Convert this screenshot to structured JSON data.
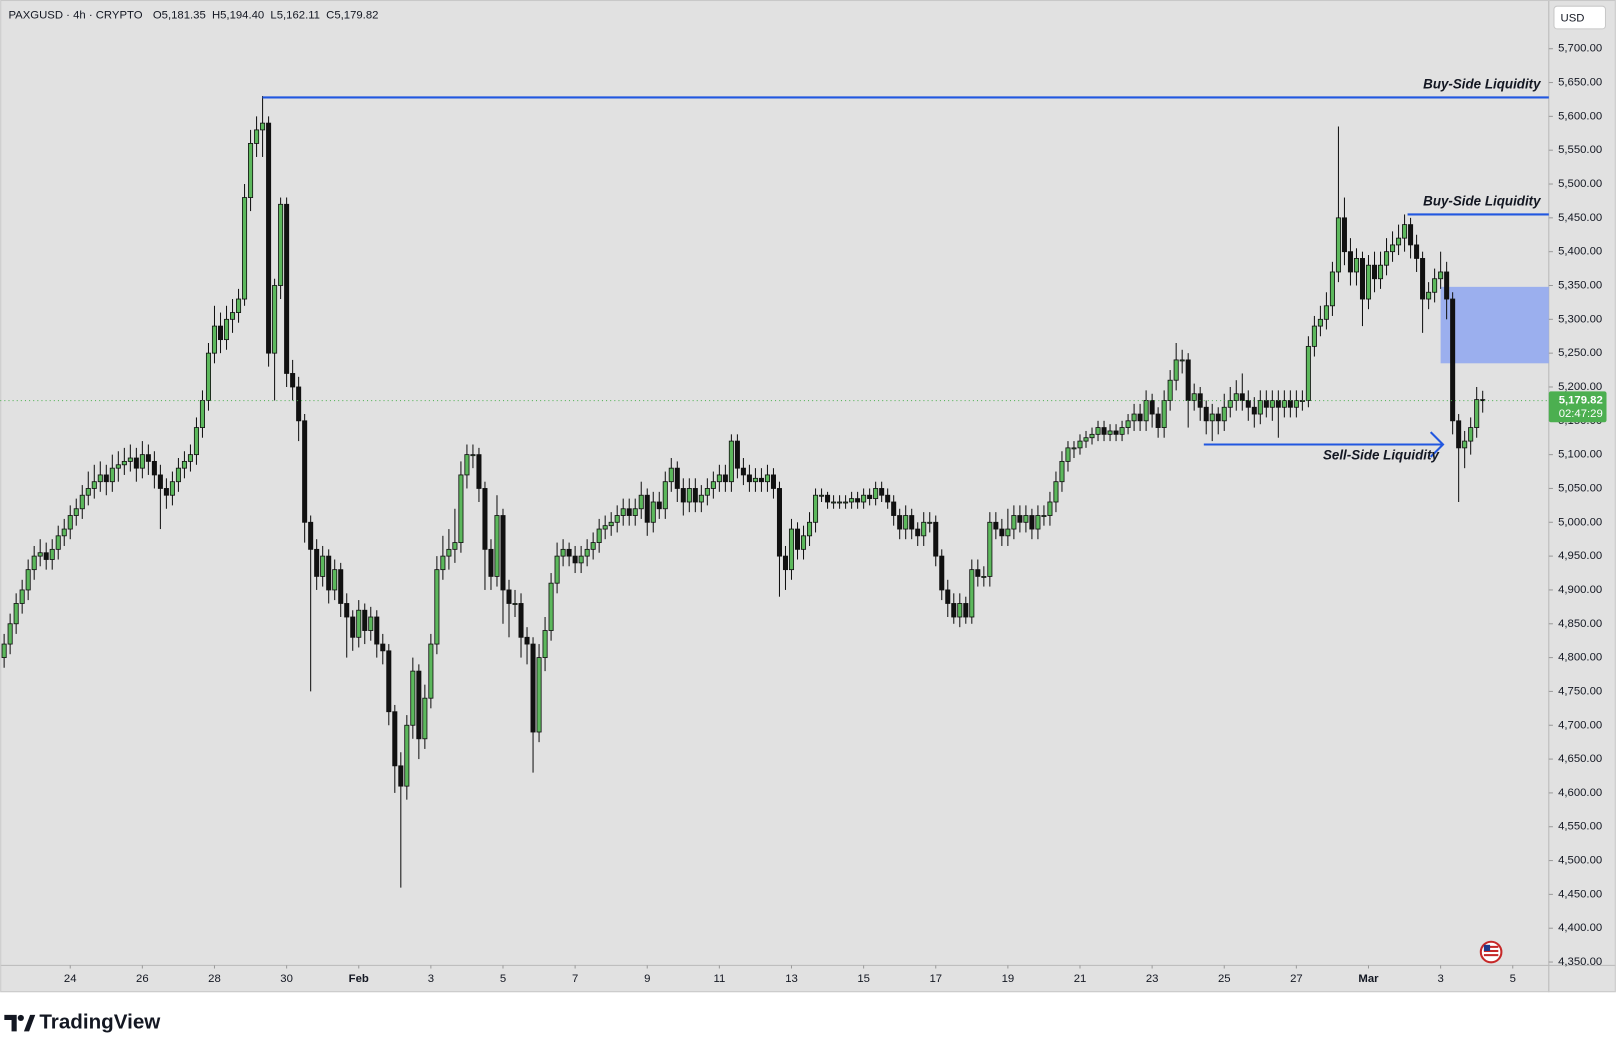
{
  "chart_data": {
    "type": "candlestick",
    "title": "PAXGUSD · 4h · CRYPTO",
    "ohlc_legend": [
      "O5,181.35",
      "H5,194.40",
      "L5,162.11",
      "C5,179.82"
    ],
    "currency": "USD",
    "brand": "TradingView",
    "up_color": "#5cb85c",
    "down_color": "#111111",
    "wick_color": "#111111",
    "annotation_color": "#2157e0",
    "zone_color": "#93aaf0",
    "price_line_color": "#4caf50",
    "grid": false,
    "xlim": [
      -0.65,
      257.0
    ],
    "ylim": [
      4345,
      5772
    ],
    "xticks": [
      {
        "value": 11,
        "label": "24"
      },
      {
        "value": 23,
        "label": "26"
      },
      {
        "value": 35,
        "label": "28"
      },
      {
        "value": 47,
        "label": "30"
      },
      {
        "value": 59,
        "label": "Feb"
      },
      {
        "value": 71,
        "label": "3"
      },
      {
        "value": 83,
        "label": "5"
      },
      {
        "value": 95,
        "label": "7"
      },
      {
        "value": 107,
        "label": "9"
      },
      {
        "value": 119,
        "label": "11"
      },
      {
        "value": 131,
        "label": "13"
      },
      {
        "value": 143,
        "label": "15"
      },
      {
        "value": 155,
        "label": "17"
      },
      {
        "value": 167,
        "label": "19"
      },
      {
        "value": 179,
        "label": "21"
      },
      {
        "value": 191,
        "label": "23"
      },
      {
        "value": 203,
        "label": "25"
      },
      {
        "value": 215,
        "label": "27"
      },
      {
        "value": 227,
        "label": "Mar"
      },
      {
        "value": 239,
        "label": "3"
      },
      {
        "value": 251,
        "label": "5"
      }
    ],
    "yticks": [
      {
        "value": 4350,
        "label": "4,350.00"
      },
      {
        "value": 4400,
        "label": "4,400.00"
      },
      {
        "value": 4450,
        "label": "4,450.00"
      },
      {
        "value": 4500,
        "label": "4,500.00"
      },
      {
        "value": 4550,
        "label": "4,550.00"
      },
      {
        "value": 4600,
        "label": "4,600.00"
      },
      {
        "value": 4650,
        "label": "4,650.00"
      },
      {
        "value": 4700,
        "label": "4,700.00"
      },
      {
        "value": 4750,
        "label": "4,750.00"
      },
      {
        "value": 4800,
        "label": "4,800.00"
      },
      {
        "value": 4850,
        "label": "4,850.00"
      },
      {
        "value": 4900,
        "label": "4,900.00"
      },
      {
        "value": 4950,
        "label": "4,950.00"
      },
      {
        "value": 5000,
        "label": "5,000.00"
      },
      {
        "value": 5050,
        "label": "5,050.00"
      },
      {
        "value": 5100,
        "label": "5,100.00"
      },
      {
        "value": 5150,
        "label": "5,150.00"
      },
      {
        "value": 5200,
        "label": "5,200.00"
      },
      {
        "value": 5250,
        "label": "5,250.00"
      },
      {
        "value": 5300,
        "label": "5,300.00"
      },
      {
        "value": 5350,
        "label": "5,350.00"
      },
      {
        "value": 5400,
        "label": "5,400.00"
      },
      {
        "value": 5450,
        "label": "5,450.00"
      },
      {
        "value": 5500,
        "label": "5,500.00"
      },
      {
        "value": 5550,
        "label": "5,550.00"
      },
      {
        "value": 5600,
        "label": "5,600.00"
      },
      {
        "value": 5650,
        "label": "5,650.00"
      },
      {
        "value": 5700,
        "label": "5,700.00"
      }
    ],
    "last_price": {
      "value": 5179.82,
      "label": "5,179.82",
      "countdown": "02:47:29"
    },
    "annotations": [
      {
        "text": "Buy-Side Liquidity",
        "price": 5628,
        "x_start": 43
      },
      {
        "text": "Buy-Side Liquidity",
        "price": 5455,
        "x_start": 233.5
      },
      {
        "text": "Sell-Side Liquidity",
        "price": 5115,
        "x_start": 199.6,
        "x_end": 239.4
      }
    ],
    "zones": [
      {
        "x": [
          239,
          257
        ],
        "y": [
          5235,
          5348
        ]
      }
    ],
    "open": [
      4800,
      4820,
      4850,
      4880,
      4900,
      4930,
      4950,
      4955,
      4945,
      4960,
      4980,
      4990,
      5010,
      5020,
      5040,
      5050,
      5060,
      5070,
      5060,
      5080,
      5085,
      5090,
      5095,
      5080,
      5100,
      5090,
      5070,
      5050,
      5040,
      5060,
      5080,
      5090,
      5100,
      5140,
      5180,
      5250,
      5290,
      5270,
      5300,
      5310,
      5330,
      5480,
      5560,
      5580,
      5590,
      5250,
      5350,
      5470,
      5220,
      5200,
      5150,
      5000,
      4960,
      4920,
      4950,
      4900,
      4930,
      4880,
      4860,
      4830,
      4870,
      4840,
      4860,
      4820,
      4810,
      4720,
      4640,
      4610,
      4700,
      4780,
      4680,
      4740,
      4820,
      4930,
      4950,
      4960,
      4970,
      5070,
      5100,
      5100,
      5050,
      4960,
      4920,
      5010,
      4900,
      4880,
      4880,
      4830,
      4820,
      4690,
      4800,
      4840,
      4910,
      4950,
      4960,
      4950,
      4940,
      4950,
      4960,
      4970,
      4990,
      4995,
      5000,
      5010,
      5020,
      5010,
      5020,
      5040,
      5000,
      5030,
      5020,
      5060,
      5080,
      5050,
      5030,
      5050,
      5030,
      5040,
      5050,
      5060,
      5070,
      5060,
      5120,
      5080,
      5070,
      5060,
      5065,
      5060,
      5070,
      5050,
      4950,
      4930,
      4990,
      4960,
      4980,
      5000,
      5040,
      5040,
      5030,
      5030,
      5030,
      5030,
      5035,
      5030,
      5040,
      5035,
      5050,
      5040,
      5030,
      5010,
      4990,
      5010,
      4990,
      4980,
      5000,
      5000,
      4950,
      4900,
      4880,
      4860,
      4880,
      4860,
      4930,
      4920,
      4920,
      5000,
      4990,
      4980,
      4990,
      5010,
      5000,
      5010,
      4990,
      5010,
      5010,
      5030,
      5060,
      5090,
      5110,
      5110,
      5120,
      5125,
      5130,
      5140,
      5130,
      5135,
      5130,
      5140,
      5150,
      5160,
      5150,
      5180,
      5160,
      5140,
      5180,
      5210,
      5240,
      5240,
      5180,
      5190,
      5170,
      5150,
      5160,
      5150,
      5170,
      5180,
      5190,
      5180,
      5170,
      5160,
      5180,
      5170,
      5180,
      5170,
      5180,
      5170,
      5180,
      5180,
      5260,
      5290,
      5300,
      5320,
      5370,
      5450,
      5400,
      5370,
      5390,
      5330,
      5380,
      5360,
      5380,
      5400,
      5410,
      5420,
      5440,
      5410,
      5390,
      5330,
      5340,
      5360,
      5370,
      5330,
      5150,
      5110,
      5120,
      5140,
      5181.35
    ],
    "high": [
      4835,
      4865,
      4895,
      4915,
      4945,
      4965,
      4975,
      4970,
      4975,
      4995,
      5005,
      5025,
      5035,
      5055,
      5075,
      5085,
      5090,
      5085,
      5100,
      5105,
      5110,
      5115,
      5110,
      5120,
      5115,
      5105,
      5085,
      5065,
      5075,
      5095,
      5105,
      5115,
      5155,
      5195,
      5265,
      5320,
      5310,
      5320,
      5330,
      5345,
      5500,
      5580,
      5600,
      5630,
      5600,
      5360,
      5480,
      5480,
      5240,
      5215,
      5160,
      5010,
      4975,
      4965,
      4960,
      4945,
      4940,
      4895,
      4870,
      4885,
      4880,
      4875,
      4870,
      4835,
      4820,
      4730,
      4660,
      4715,
      4800,
      4790,
      4760,
      4835,
      4950,
      4980,
      4990,
      5020,
      5090,
      5115,
      5115,
      5110,
      5060,
      4975,
      5040,
      5020,
      4915,
      4900,
      4895,
      4845,
      4830,
      4820,
      4860,
      4925,
      4970,
      4975,
      4970,
      4965,
      4965,
      4975,
      4985,
      5005,
      5010,
      5015,
      5025,
      5035,
      5035,
      5035,
      5060,
      5050,
      5045,
      5045,
      5075,
      5095,
      5090,
      5065,
      5065,
      5065,
      5055,
      5065,
      5075,
      5085,
      5085,
      5130,
      5130,
      5095,
      5085,
      5080,
      5080,
      5085,
      5080,
      5060,
      4965,
      5005,
      5000,
      4995,
      5015,
      5050,
      5050,
      5045,
      5040,
      5040,
      5040,
      5045,
      5045,
      5050,
      5050,
      5060,
      5060,
      5050,
      5040,
      5020,
      5025,
      5020,
      5000,
      5015,
      5015,
      5010,
      4960,
      4915,
      4895,
      4895,
      4890,
      4945,
      4945,
      4935,
      5015,
      5015,
      5005,
      5020,
      5025,
      5025,
      5025,
      5020,
      5025,
      5025,
      5045,
      5075,
      5105,
      5120,
      5120,
      5130,
      5135,
      5140,
      5150,
      5150,
      5145,
      5145,
      5150,
      5160,
      5175,
      5175,
      5195,
      5190,
      5170,
      5195,
      5225,
      5265,
      5255,
      5250,
      5205,
      5200,
      5180,
      5175,
      5170,
      5190,
      5200,
      5210,
      5220,
      5195,
      5185,
      5195,
      5195,
      5195,
      5195,
      5195,
      5195,
      5195,
      5195,
      5275,
      5305,
      5320,
      5340,
      5385,
      5585,
      5480,
      5420,
      5405,
      5400,
      5395,
      5400,
      5400,
      5420,
      5430,
      5440,
      5455,
      5450,
      5425,
      5400,
      5355,
      5375,
      5400,
      5385,
      5340,
      5160,
      5135,
      5155,
      5200,
      5194.4
    ],
    "low": [
      4785,
      4805,
      4835,
      4865,
      4885,
      4915,
      4935,
      4930,
      4930,
      4945,
      4965,
      4975,
      4995,
      5005,
      5025,
      5035,
      5045,
      5040,
      5045,
      5060,
      5070,
      5075,
      5060,
      5065,
      5070,
      5050,
      4990,
      5020,
      5025,
      5045,
      5065,
      5075,
      5085,
      5125,
      5165,
      5235,
      5250,
      5255,
      5280,
      5295,
      5320,
      5460,
      5540,
      5540,
      5230,
      5180,
      5330,
      5200,
      5180,
      5120,
      4970,
      4750,
      4900,
      4905,
      4880,
      4885,
      4860,
      4800,
      4810,
      4815,
      4820,
      4825,
      4800,
      4790,
      4700,
      4600,
      4460,
      4590,
      4680,
      4650,
      4665,
      4725,
      4805,
      4915,
      4930,
      4940,
      4955,
      5050,
      5080,
      5030,
      4900,
      4900,
      4905,
      4850,
      4830,
      4860,
      4800,
      4790,
      4630,
      4675,
      4780,
      4825,
      4895,
      4935,
      4935,
      4925,
      4925,
      4935,
      4945,
      4955,
      4975,
      4980,
      4985,
      4995,
      4995,
      4995,
      5005,
      4980,
      4985,
      5005,
      5005,
      5045,
      5030,
      5010,
      5015,
      5015,
      5015,
      5025,
      5035,
      5045,
      5045,
      5045,
      5065,
      5055,
      5045,
      5045,
      5045,
      5045,
      5035,
      4890,
      4900,
      4915,
      4945,
      4945,
      4965,
      4985,
      5030,
      5020,
      5020,
      5020,
      5020,
      5020,
      5020,
      5020,
      5025,
      5025,
      5030,
      5020,
      4995,
      4975,
      4975,
      4975,
      4965,
      4965,
      4985,
      4935,
      4885,
      4860,
      4850,
      4845,
      4850,
      4850,
      4905,
      4905,
      4905,
      4975,
      4965,
      4965,
      4975,
      4985,
      4985,
      4975,
      4975,
      4995,
      4995,
      5015,
      5045,
      5075,
      5095,
      5100,
      5110,
      5115,
      5120,
      5120,
      5120,
      5120,
      5120,
      5130,
      5135,
      5135,
      5135,
      5140,
      5125,
      5125,
      5165,
      5195,
      5220,
      5140,
      5165,
      5150,
      5130,
      5120,
      5130,
      5135,
      5155,
      5165,
      5165,
      5150,
      5140,
      5145,
      5155,
      5150,
      5125,
      5155,
      5155,
      5155,
      5165,
      5170,
      5245,
      5275,
      5285,
      5305,
      5355,
      5380,
      5350,
      5350,
      5290,
      5315,
      5340,
      5345,
      5365,
      5385,
      5395,
      5400,
      5390,
      5370,
      5280,
      5315,
      5325,
      5345,
      5300,
      5130,
      5030,
      5080,
      5100,
      5125,
      5162.11
    ],
    "close": [
      4820,
      4850,
      4880,
      4900,
      4930,
      4950,
      4955,
      4945,
      4960,
      4980,
      4990,
      5010,
      5020,
      5040,
      5050,
      5060,
      5070,
      5060,
      5080,
      5085,
      5090,
      5095,
      5080,
      5100,
      5090,
      5070,
      5050,
      5040,
      5060,
      5080,
      5090,
      5100,
      5140,
      5180,
      5250,
      5290,
      5270,
      5300,
      5310,
      5330,
      5480,
      5560,
      5580,
      5590,
      5250,
      5350,
      5470,
      5220,
      5200,
      5150,
      5000,
      4960,
      4920,
      4950,
      4900,
      4930,
      4880,
      4860,
      4830,
      4870,
      4840,
      4860,
      4820,
      4810,
      4720,
      4640,
      4610,
      4700,
      4780,
      4680,
      4740,
      4820,
      4930,
      4950,
      4960,
      4970,
      5070,
      5100,
      5100,
      5050,
      4960,
      4920,
      5010,
      4900,
      4880,
      4880,
      4830,
      4820,
      4690,
      4800,
      4840,
      4910,
      4950,
      4960,
      4950,
      4940,
      4950,
      4960,
      4970,
      4990,
      4995,
      5000,
      5010,
      5020,
      5010,
      5020,
      5040,
      5000,
      5030,
      5020,
      5060,
      5080,
      5050,
      5030,
      5050,
      5030,
      5040,
      5050,
      5060,
      5070,
      5060,
      5120,
      5080,
      5070,
      5060,
      5065,
      5060,
      5070,
      5050,
      4950,
      4930,
      4990,
      4960,
      4980,
      5000,
      5040,
      5040,
      5030,
      5030,
      5030,
      5030,
      5035,
      5030,
      5040,
      5035,
      5050,
      5040,
      5030,
      5010,
      4990,
      5010,
      4990,
      4980,
      5000,
      5000,
      4950,
      4900,
      4880,
      4860,
      4880,
      4860,
      4930,
      4920,
      4920,
      5000,
      4990,
      4980,
      4990,
      5010,
      5000,
      5010,
      4990,
      5010,
      5010,
      5030,
      5060,
      5090,
      5110,
      5110,
      5120,
      5125,
      5130,
      5140,
      5130,
      5135,
      5130,
      5140,
      5150,
      5160,
      5150,
      5180,
      5160,
      5140,
      5180,
      5210,
      5240,
      5240,
      5180,
      5190,
      5170,
      5150,
      5160,
      5150,
      5170,
      5180,
      5190,
      5180,
      5170,
      5160,
      5180,
      5170,
      5180,
      5170,
      5180,
      5170,
      5180,
      5180,
      5260,
      5290,
      5300,
      5320,
      5370,
      5450,
      5400,
      5370,
      5390,
      5330,
      5380,
      5360,
      5380,
      5400,
      5410,
      5420,
      5440,
      5410,
      5390,
      5330,
      5340,
      5360,
      5370,
      5330,
      5150,
      5110,
      5120,
      5140,
      5181.35,
      5179.82
    ]
  }
}
